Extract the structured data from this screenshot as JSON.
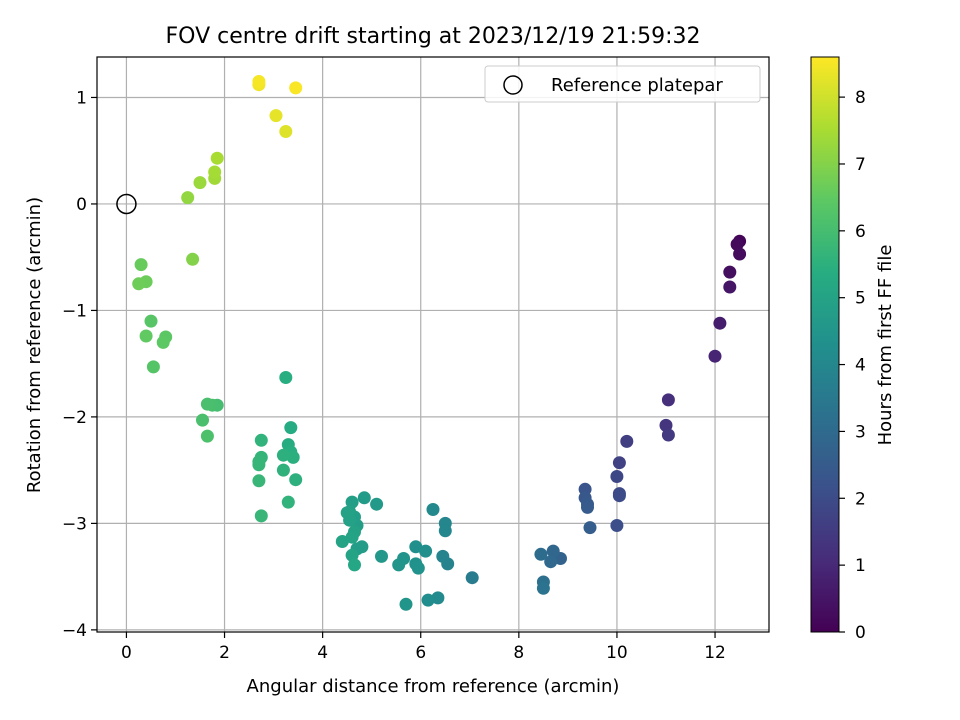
{
  "chart_data": {
    "type": "scatter",
    "title": "FOV centre drift starting at 2023/12/19 21:59:32",
    "xlabel": "Angular distance from reference (arcmin)",
    "ylabel": "Rotation from reference (arcmin)",
    "xlim": [
      -0.6,
      13.1
    ],
    "ylim": [
      -4.02,
      1.38
    ],
    "xticks": [
      0,
      2,
      4,
      6,
      8,
      10,
      12
    ],
    "xtick_labels": [
      "0",
      "2",
      "4",
      "6",
      "8",
      "10",
      "12"
    ],
    "yticks": [
      -4,
      -3,
      -2,
      -1,
      0,
      1
    ],
    "ytick_labels": [
      "−4",
      "−3",
      "−2",
      "−1",
      "0",
      "1"
    ],
    "grid": true,
    "legend": {
      "position": "top-right",
      "entries": [
        "Reference platepar"
      ]
    },
    "reference_point": {
      "x": 0,
      "y": 0,
      "marker": "open-circle"
    },
    "colorbar": {
      "label": "Hours from first FF file",
      "min": 0,
      "max": 8.6,
      "ticks": [
        0,
        1,
        2,
        3,
        4,
        5,
        6,
        7,
        8
      ],
      "tick_labels": [
        "0",
        "1",
        "2",
        "3",
        "4",
        "5",
        "6",
        "7",
        "8"
      ],
      "colormap": "viridis"
    },
    "points": [
      {
        "x": 12.5,
        "y": -0.35,
        "c": 0.1
      },
      {
        "x": 12.45,
        "y": -0.38,
        "c": 0.2
      },
      {
        "x": 12.5,
        "y": -0.47,
        "c": 0.25
      },
      {
        "x": 12.3,
        "y": -0.64,
        "c": 0.35
      },
      {
        "x": 12.3,
        "y": -0.78,
        "c": 0.5
      },
      {
        "x": 12.1,
        "y": -1.12,
        "c": 0.7
      },
      {
        "x": 12.0,
        "y": -1.43,
        "c": 0.9
      },
      {
        "x": 11.05,
        "y": -1.84,
        "c": 1.2
      },
      {
        "x": 11.0,
        "y": -2.08,
        "c": 1.35
      },
      {
        "x": 11.05,
        "y": -2.17,
        "c": 1.45
      },
      {
        "x": 10.2,
        "y": -2.23,
        "c": 1.6
      },
      {
        "x": 10.05,
        "y": -2.43,
        "c": 1.7
      },
      {
        "x": 10.0,
        "y": -2.56,
        "c": 1.85
      },
      {
        "x": 10.05,
        "y": -2.72,
        "c": 1.95
      },
      {
        "x": 10.05,
        "y": -2.74,
        "c": 2.0
      },
      {
        "x": 10.0,
        "y": -3.02,
        "c": 2.1
      },
      {
        "x": 9.35,
        "y": -2.68,
        "c": 2.3
      },
      {
        "x": 9.35,
        "y": -2.76,
        "c": 2.4
      },
      {
        "x": 9.4,
        "y": -2.82,
        "c": 2.45
      },
      {
        "x": 9.4,
        "y": -2.85,
        "c": 2.5
      },
      {
        "x": 9.45,
        "y": -3.04,
        "c": 2.6
      },
      {
        "x": 8.85,
        "y": -3.33,
        "c": 2.75
      },
      {
        "x": 8.7,
        "y": -3.26,
        "c": 2.85
      },
      {
        "x": 8.65,
        "y": -3.36,
        "c": 2.95
      },
      {
        "x": 8.45,
        "y": -3.29,
        "c": 3.05
      },
      {
        "x": 8.5,
        "y": -3.55,
        "c": 3.2
      },
      {
        "x": 8.5,
        "y": -3.61,
        "c": 3.3
      },
      {
        "x": 7.05,
        "y": -3.51,
        "c": 3.6
      },
      {
        "x": 6.55,
        "y": -3.38,
        "c": 3.8
      },
      {
        "x": 6.45,
        "y": -3.31,
        "c": 3.9
      },
      {
        "x": 6.5,
        "y": -3.0,
        "c": 3.95
      },
      {
        "x": 6.5,
        "y": -3.07,
        "c": 4.0
      },
      {
        "x": 6.25,
        "y": -2.87,
        "c": 4.05
      },
      {
        "x": 6.35,
        "y": -3.7,
        "c": 4.1
      },
      {
        "x": 6.15,
        "y": -3.72,
        "c": 4.2
      },
      {
        "x": 6.1,
        "y": -3.26,
        "c": 4.25
      },
      {
        "x": 5.9,
        "y": -3.22,
        "c": 4.3
      },
      {
        "x": 5.9,
        "y": -3.38,
        "c": 4.35
      },
      {
        "x": 5.95,
        "y": -3.42,
        "c": 4.4
      },
      {
        "x": 5.65,
        "y": -3.33,
        "c": 4.45
      },
      {
        "x": 5.55,
        "y": -3.39,
        "c": 4.5
      },
      {
        "x": 5.7,
        "y": -3.76,
        "c": 4.5
      },
      {
        "x": 5.2,
        "y": -3.31,
        "c": 4.6
      },
      {
        "x": 5.1,
        "y": -2.82,
        "c": 4.65
      },
      {
        "x": 4.85,
        "y": -2.76,
        "c": 4.7
      },
      {
        "x": 4.8,
        "y": -3.22,
        "c": 4.75
      },
      {
        "x": 4.7,
        "y": -3.24,
        "c": 4.78
      },
      {
        "x": 4.7,
        "y": -3.02,
        "c": 4.8
      },
      {
        "x": 4.65,
        "y": -2.94,
        "c": 4.85
      },
      {
        "x": 4.6,
        "y": -2.8,
        "c": 4.85
      },
      {
        "x": 4.55,
        "y": -2.89,
        "c": 4.9
      },
      {
        "x": 4.55,
        "y": -2.97,
        "c": 4.92
      },
      {
        "x": 4.5,
        "y": -2.9,
        "c": 4.95
      },
      {
        "x": 4.65,
        "y": -3.08,
        "c": 4.98
      },
      {
        "x": 4.6,
        "y": -3.13,
        "c": 5.0
      },
      {
        "x": 4.4,
        "y": -3.17,
        "c": 5.0
      },
      {
        "x": 4.6,
        "y": -3.3,
        "c": 5.05
      },
      {
        "x": 4.65,
        "y": -3.39,
        "c": 5.1
      },
      {
        "x": 3.35,
        "y": -2.1,
        "c": 5.3
      },
      {
        "x": 3.3,
        "y": -2.26,
        "c": 5.35
      },
      {
        "x": 3.25,
        "y": -1.63,
        "c": 5.4
      },
      {
        "x": 3.35,
        "y": -2.33,
        "c": 5.4
      },
      {
        "x": 3.4,
        "y": -2.38,
        "c": 5.45
      },
      {
        "x": 3.2,
        "y": -2.36,
        "c": 5.5
      },
      {
        "x": 3.45,
        "y": -2.59,
        "c": 5.5
      },
      {
        "x": 3.2,
        "y": -2.5,
        "c": 5.55
      },
      {
        "x": 3.3,
        "y": -2.8,
        "c": 5.6
      },
      {
        "x": 2.75,
        "y": -2.22,
        "c": 5.6
      },
      {
        "x": 2.75,
        "y": -2.38,
        "c": 5.65
      },
      {
        "x": 2.7,
        "y": -2.42,
        "c": 5.7
      },
      {
        "x": 2.7,
        "y": -2.45,
        "c": 5.7
      },
      {
        "x": 2.7,
        "y": -2.6,
        "c": 5.75
      },
      {
        "x": 2.75,
        "y": -2.93,
        "c": 5.75
      },
      {
        "x": 1.85,
        "y": -1.89,
        "c": 6.0
      },
      {
        "x": 1.75,
        "y": -1.89,
        "c": 6.05
      },
      {
        "x": 1.65,
        "y": -1.88,
        "c": 6.1
      },
      {
        "x": 1.55,
        "y": -2.03,
        "c": 6.1
      },
      {
        "x": 1.65,
        "y": -2.18,
        "c": 6.15
      },
      {
        "x": 0.55,
        "y": -1.53,
        "c": 6.3
      },
      {
        "x": 0.5,
        "y": -1.1,
        "c": 6.35
      },
      {
        "x": 0.8,
        "y": -1.25,
        "c": 6.4
      },
      {
        "x": 0.75,
        "y": -1.3,
        "c": 6.45
      },
      {
        "x": 0.4,
        "y": -1.24,
        "c": 6.5
      },
      {
        "x": 0.3,
        "y": -0.57,
        "c": 6.6
      },
      {
        "x": 0.4,
        "y": -0.73,
        "c": 6.65
      },
      {
        "x": 0.25,
        "y": -0.75,
        "c": 6.7
      },
      {
        "x": 1.35,
        "y": -0.52,
        "c": 7.0
      },
      {
        "x": 1.25,
        "y": 0.06,
        "c": 7.2
      },
      {
        "x": 1.5,
        "y": 0.2,
        "c": 7.3
      },
      {
        "x": 1.8,
        "y": 0.24,
        "c": 7.4
      },
      {
        "x": 1.8,
        "y": 0.3,
        "c": 7.45
      },
      {
        "x": 1.85,
        "y": 0.43,
        "c": 7.5
      },
      {
        "x": 3.25,
        "y": 0.68,
        "c": 8.2
      },
      {
        "x": 3.05,
        "y": 0.83,
        "c": 8.3
      },
      {
        "x": 2.7,
        "y": 1.12,
        "c": 8.45
      },
      {
        "x": 2.7,
        "y": 1.15,
        "c": 8.5
      },
      {
        "x": 3.45,
        "y": 1.09,
        "c": 8.55
      }
    ]
  }
}
